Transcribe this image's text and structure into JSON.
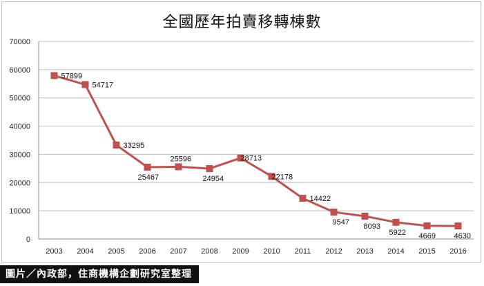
{
  "chart_data": {
    "type": "line",
    "title": "全國歷年拍賣移轉棟數",
    "xlabel": "",
    "ylabel": "",
    "categories": [
      "2003",
      "2004",
      "2005",
      "2006",
      "2007",
      "2008",
      "2009",
      "2010",
      "2011",
      "2012",
      "2013",
      "2014",
      "2015",
      "2016"
    ],
    "series": [
      {
        "values": [
          57899,
          54717,
          33295,
          25467,
          25596,
          24954,
          28713,
          22178,
          14422,
          9547,
          8093,
          5922,
          4669,
          4630
        ]
      }
    ],
    "ylim": [
      0,
      70000
    ],
    "yticks": [
      0,
      10000,
      20000,
      30000,
      40000,
      50000,
      60000,
      70000
    ],
    "grid": true,
    "legend": "none",
    "colors": {
      "line": "#c0504d",
      "marker": "#c0504d",
      "grid": "#bfbfbf"
    }
  },
  "footer": {
    "credit": "圖片／內政部，住商機構企劃研究室整理"
  }
}
